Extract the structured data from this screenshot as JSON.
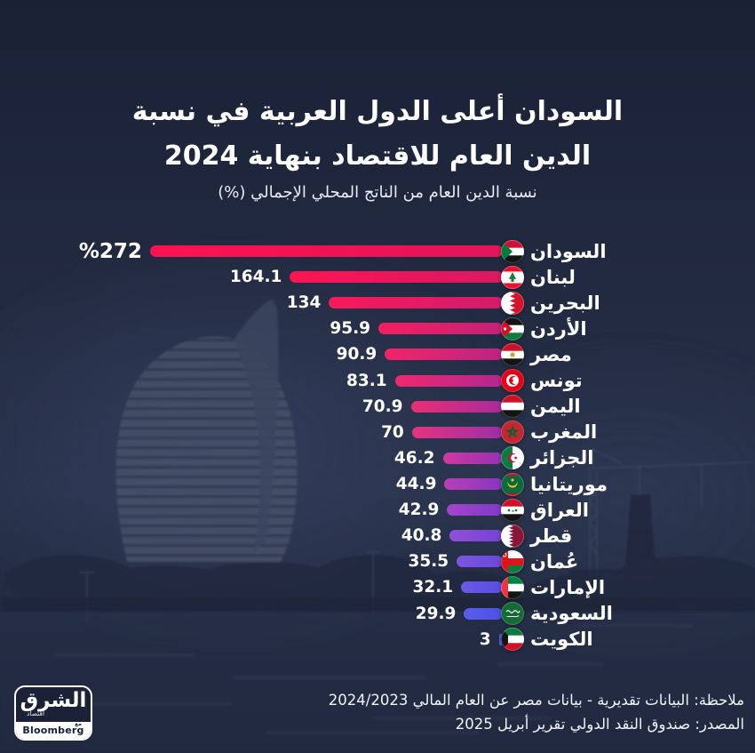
{
  "header": {
    "title_line1": "السودان أعلى الدول العربية في نسبة",
    "title_line2": "الدين العام للاقتصاد بنهاية 2024",
    "subtitle": "نسبة الدين العام من الناتج المحلي الإجمالي (%)"
  },
  "chart_data": {
    "type": "bar",
    "orientation": "horizontal-rtl",
    "title": "السودان أعلى الدول العربية في نسبة الدين العام للاقتصاد بنهاية 2024",
    "xlabel": "نسبة الدين العام من الناتج المحلي الإجمالي (%)",
    "xlim": [
      0,
      272
    ],
    "grid": false,
    "legend": "none",
    "categories": [
      "السودان",
      "لبنان",
      "البحرين",
      "الأردن",
      "مصر",
      "تونس",
      "اليمن",
      "المغرب",
      "الجزائر",
      "موريتانيا",
      "العراق",
      "قطر",
      "عُمان",
      "الإمارات",
      "السعودية",
      "الكويت"
    ],
    "values": [
      272,
      164.1,
      134,
      95.9,
      90.9,
      83.1,
      70.9,
      70,
      46.2,
      44.9,
      42.9,
      40.8,
      35.5,
      32.1,
      29.9,
      3
    ],
    "value_labels": [
      "%272",
      "164.1",
      "134",
      "95.9",
      "90.9",
      "83.1",
      "70.9",
      "70",
      "46.2",
      "44.9",
      "42.9",
      "40.8",
      "35.5",
      "32.1",
      "29.9",
      "3"
    ],
    "emphasis_index": 0,
    "flags": [
      "sudan",
      "lebanon",
      "bahrain",
      "jordan",
      "egypt",
      "tunisia",
      "yemen",
      "morocco",
      "algeria",
      "mauritania",
      "iraq",
      "qatar",
      "oman",
      "uae",
      "saudi-arabia",
      "kuwait"
    ],
    "bar_colors": [
      [
        "#FF1150",
        "#E41459"
      ],
      [
        "#FC1554",
        "#DA1862"
      ],
      [
        "#F91A5A",
        "#D01C6D"
      ],
      [
        "#F51F61",
        "#C62079"
      ],
      [
        "#F22467",
        "#BC2485"
      ],
      [
        "#EF296E",
        "#B22791"
      ],
      [
        "#EB2E75",
        "#A82B9D"
      ],
      [
        "#E5337F",
        "#9E2EA9"
      ],
      [
        "#D039A0",
        "#9432B4"
      ],
      [
        "#B83FB8",
        "#8A35C0"
      ],
      [
        "#A545CA",
        "#8038CB"
      ],
      [
        "#9150D8",
        "#7442D4"
      ],
      [
        "#7E55E0",
        "#6848DB"
      ],
      [
        "#6C59E6",
        "#5A4CE1"
      ],
      [
        "#5A5EEA",
        "#4C50E6"
      ],
      [
        "#4A63EE",
        "#4458EA"
      ]
    ]
  },
  "footer": {
    "note": "ملاحظة: البيانات تقديرية - بيانات مصر عن العام المالي 2024/2023",
    "source": "المصدر: صندوق النقد الدولي تقرير أبريل 2025"
  },
  "logo": {
    "brand": "الشرق",
    "brand_sub": "اقتصاد",
    "partner": "Bloomberg",
    "partner_prefix": "مع"
  },
  "colors": {
    "background_navy": "#1C2338",
    "text": "#FFFFFF",
    "bar_scale_start": "#FF1150",
    "bar_scale_end": "#4458EA"
  }
}
